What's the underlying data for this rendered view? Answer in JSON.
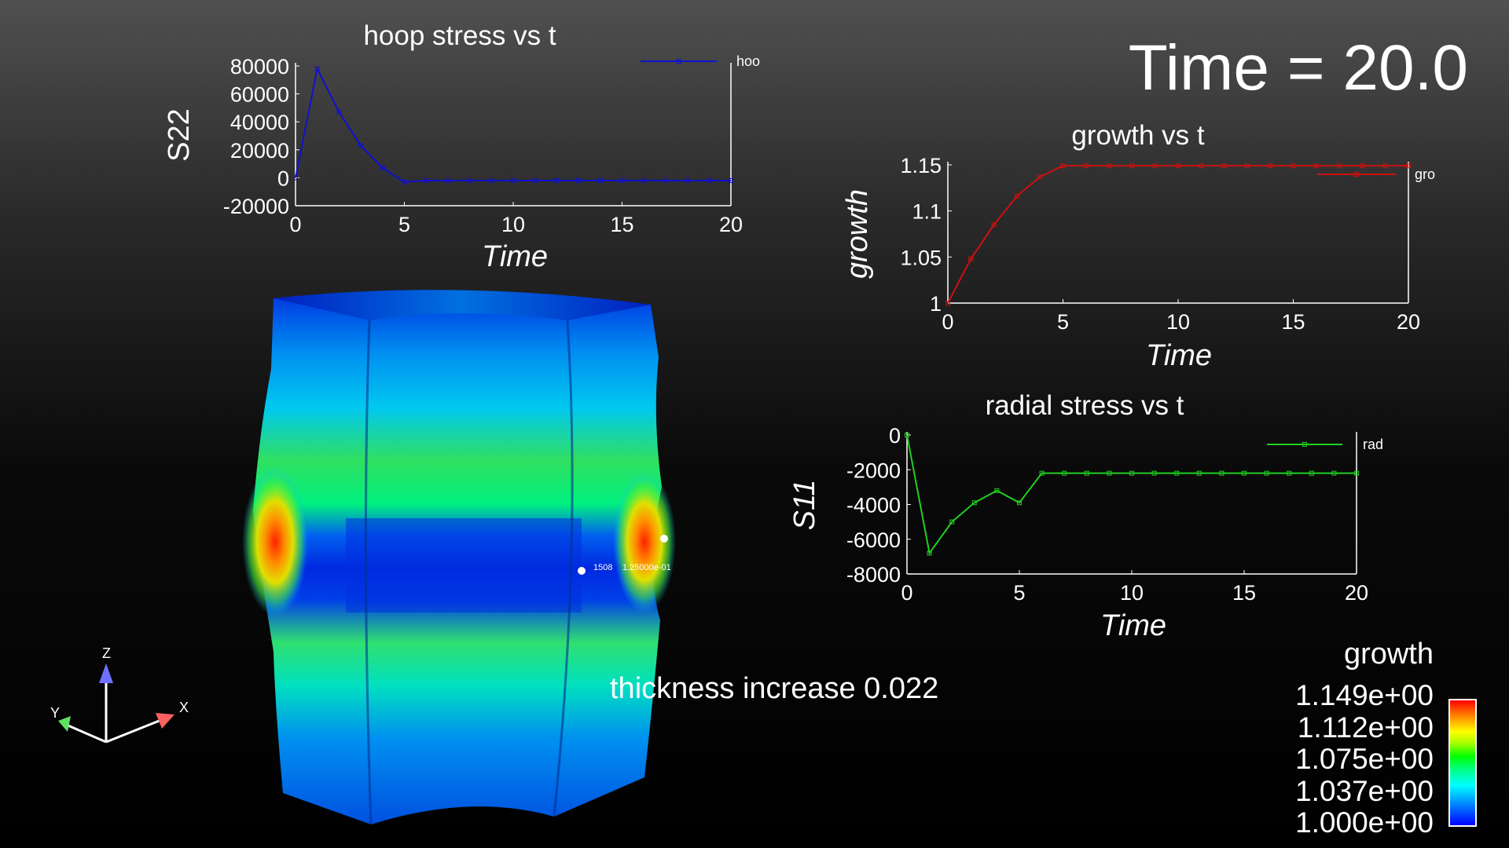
{
  "time_label": "Time = 20.0",
  "annotation": "thickness increase 0.022",
  "probe": {
    "id": "1508",
    "value": "1.25000e-01"
  },
  "axes_triad": {
    "x": "X",
    "y": "Y",
    "z": "Z"
  },
  "colorbar": {
    "title": "growth",
    "ticks": [
      "1.149e+00",
      "1.112e+00",
      "1.075e+00",
      "1.037e+00",
      "1.000e+00"
    ]
  },
  "colors": {
    "hoop": "#1010d0",
    "growth": "#cc1010",
    "radial": "#20d020"
  },
  "chart_data": [
    {
      "id": "hoop",
      "type": "line",
      "title": "hoop stress vs t",
      "xlabel": "Time",
      "ylabel": "S22",
      "legend": "hoo",
      "legend_position": "top-right",
      "xlim": [
        0,
        20
      ],
      "ylim": [
        -20000,
        80000
      ],
      "xticks": [
        0,
        5,
        10,
        15,
        20
      ],
      "yticks": [
        -20000,
        0,
        20000,
        40000,
        60000,
        80000
      ],
      "x": [
        0,
        1,
        2,
        3,
        4,
        5,
        6,
        7,
        8,
        9,
        10,
        11,
        12,
        13,
        14,
        15,
        16,
        17,
        18,
        19,
        20
      ],
      "y": [
        0,
        78000,
        47000,
        23000,
        7000,
        -3000,
        -2000,
        -2000,
        -2000,
        -2000,
        -2000,
        -2000,
        -2000,
        -2000,
        -2000,
        -2000,
        -2000,
        -2000,
        -2000,
        -2000,
        -2000
      ]
    },
    {
      "id": "growth",
      "type": "line",
      "title": "growth vs t",
      "xlabel": "Time",
      "ylabel": "growth",
      "legend": "gro",
      "legend_position": "top-right",
      "xlim": [
        0,
        20
      ],
      "ylim": [
        1,
        1.15
      ],
      "xticks": [
        0,
        5,
        10,
        15,
        20
      ],
      "yticks": [
        1,
        1.05,
        1.1,
        1.15
      ],
      "x": [
        0,
        1,
        2,
        3,
        4,
        5,
        6,
        7,
        8,
        9,
        10,
        11,
        12,
        13,
        14,
        15,
        16,
        17,
        18,
        19,
        20
      ],
      "y": [
        1,
        1.048,
        1.085,
        1.116,
        1.137,
        1.149,
        1.149,
        1.149,
        1.149,
        1.149,
        1.149,
        1.149,
        1.149,
        1.149,
        1.149,
        1.149,
        1.149,
        1.149,
        1.149,
        1.149,
        1.149
      ]
    },
    {
      "id": "radial",
      "type": "line",
      "title": "radial stress vs t",
      "xlabel": "Time",
      "ylabel": "S11",
      "legend": "rad",
      "legend_position": "top-right",
      "xlim": [
        0,
        20
      ],
      "ylim": [
        -8000,
        0
      ],
      "xticks": [
        0,
        5,
        10,
        15,
        20
      ],
      "yticks": [
        -8000,
        -6000,
        -4000,
        -2000,
        0
      ],
      "x": [
        0,
        1,
        2,
        3,
        4,
        5,
        6,
        7,
        8,
        9,
        10,
        11,
        12,
        13,
        14,
        15,
        16,
        17,
        18,
        19,
        20
      ],
      "y": [
        0,
        -6800,
        -5000,
        -3900,
        -3200,
        -3900,
        -2200,
        -2200,
        -2200,
        -2200,
        -2200,
        -2200,
        -2200,
        -2200,
        -2200,
        -2200,
        -2200,
        -2200,
        -2200,
        -2200,
        -2200
      ]
    }
  ]
}
